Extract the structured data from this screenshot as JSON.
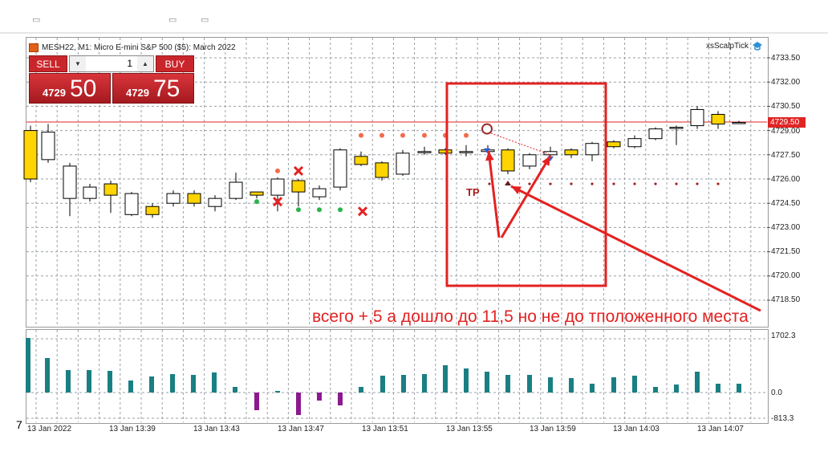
{
  "chart": {
    "title": "MESH22, M1:  Micro E-mini S&P 500 ($5): March 2022",
    "ea_name": "xsScalpTick",
    "price_scale": [
      "4733.50",
      "4732.00",
      "4730.50",
      "4729.00",
      "4727.50",
      "4726.00",
      "4724.50",
      "4723.00",
      "4721.50",
      "4720.00",
      "4718.50"
    ],
    "current_price_tag": "4729.50",
    "indicator_scale": [
      "1702.3",
      "0.0",
      "-813.3"
    ],
    "time_axis": [
      "13 Jan 2022",
      "13 Jan 13:39",
      "13 Jan 13:43",
      "13 Jan 13:47",
      "13 Jan 13:51",
      "13 Jan 13:55",
      "13 Jan 13:59",
      "13 Jan 14:03",
      "13 Jan 14:07"
    ],
    "annotation": "всего +,5 а дошло до 11,5 но не до тположенного места",
    "tp_label": "TP",
    "left_digit": "7",
    "colors": {
      "bull": "#ffffff",
      "bear": "#ffd400",
      "grid": "#9aa0a6",
      "annotation": "#e32222",
      "histo_pos": "#1a7f83",
      "histo_neg": "#8b1a8f"
    }
  },
  "trade_panel": {
    "sell_label": "SELL",
    "buy_label": "BUY",
    "lot_value": "1",
    "bid_small": "4729",
    "bid_big": "50",
    "ask_small": "4729",
    "ask_big": "75"
  }
}
